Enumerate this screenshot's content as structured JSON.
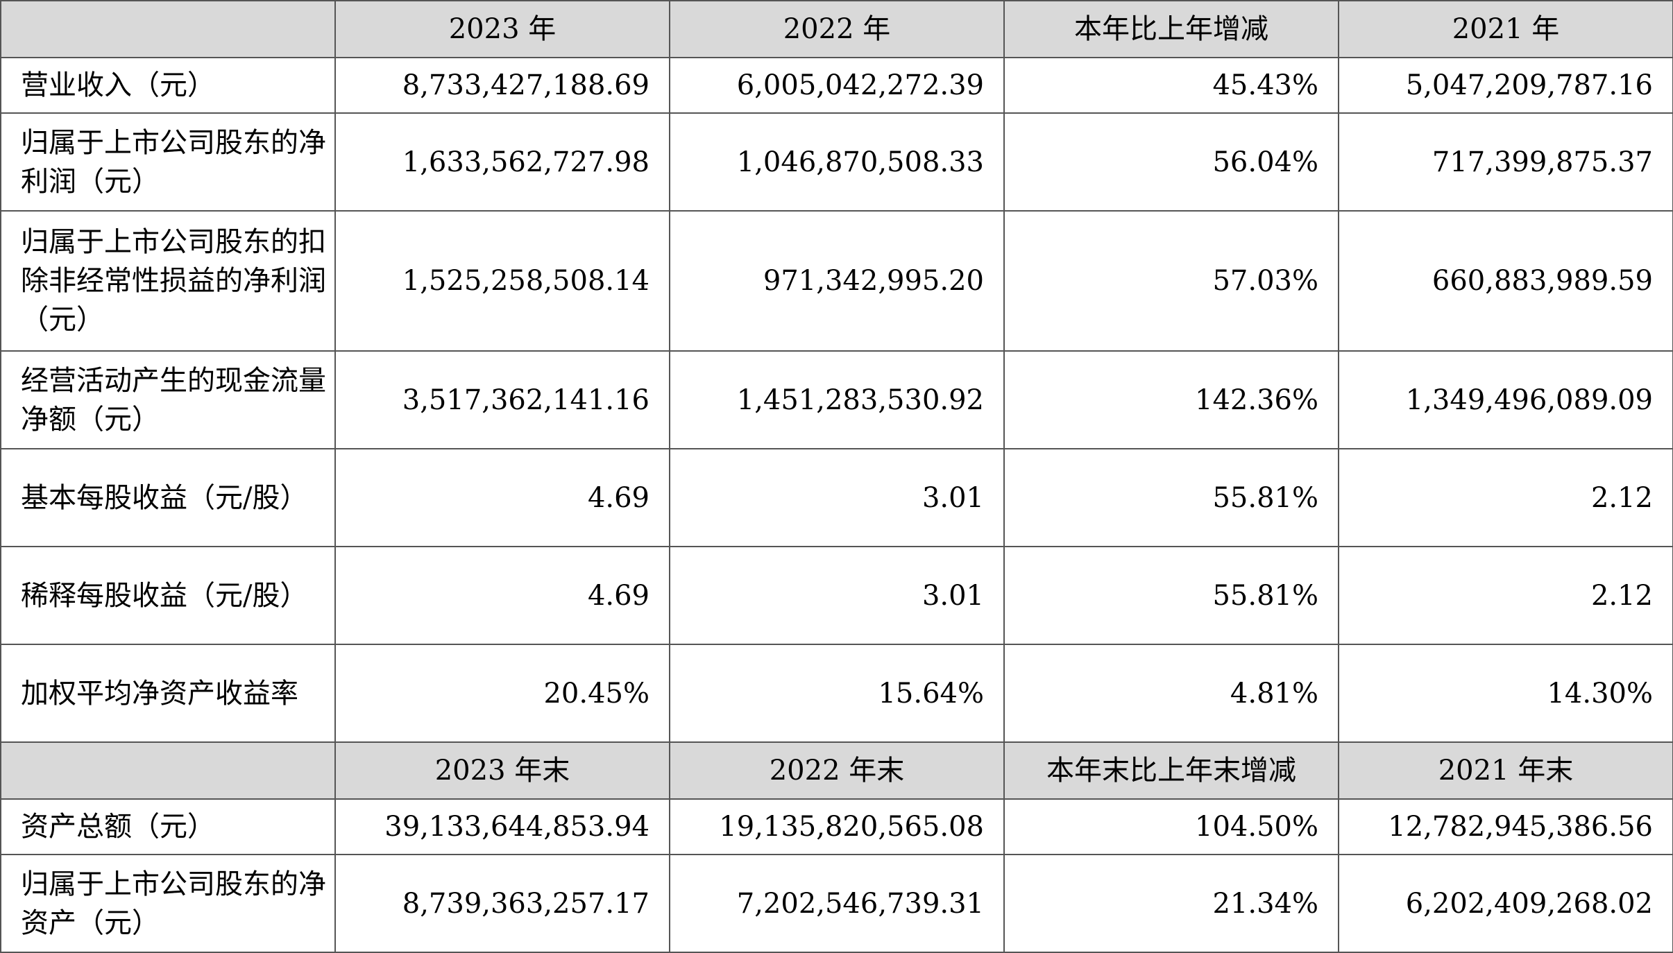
{
  "header1": [
    "",
    "2023 年",
    "2022 年",
    "本年比上年增减",
    "2021 年"
  ],
  "rows1": [
    {
      "label": "营业收入（元）",
      "v": [
        "8,733,427,188.69",
        "6,005,042,272.39",
        "45.43%",
        "5,047,209,787.16"
      ]
    },
    {
      "label": "归属于上市公司股东的净利润（元）",
      "v": [
        "1,633,562,727.98",
        "1,046,870,508.33",
        "56.04%",
        "717,399,875.37"
      ]
    },
    {
      "label": "归属于上市公司股东的扣除非经常性损益的净利润（元）",
      "v": [
        "1,525,258,508.14",
        "971,342,995.20",
        "57.03%",
        "660,883,989.59"
      ]
    },
    {
      "label": "经营活动产生的现金流量净额（元）",
      "v": [
        "3,517,362,141.16",
        "1,451,283,530.92",
        "142.36%",
        "1,349,496,089.09"
      ]
    },
    {
      "label": "基本每股收益（元/股）",
      "v": [
        "4.69",
        "3.01",
        "55.81%",
        "2.12"
      ]
    },
    {
      "label": "稀释每股收益（元/股）",
      "v": [
        "4.69",
        "3.01",
        "55.81%",
        "2.12"
      ]
    },
    {
      "label": "加权平均净资产收益率",
      "v": [
        "20.45%",
        "15.64%",
        "4.81%",
        "14.30%"
      ]
    }
  ],
  "header2": [
    "",
    "2023 年末",
    "2022 年末",
    "本年末比上年末增减",
    "2021 年末"
  ],
  "rows2": [
    {
      "label": "资产总额（元）",
      "v": [
        "39,133,644,853.94",
        "19,135,820,565.08",
        "104.50%",
        "12,782,945,386.56"
      ]
    },
    {
      "label": "归属于上市公司股东的净资产（元）",
      "v": [
        "8,739,363,257.17",
        "7,202,546,739.31",
        "21.34%",
        "6,202,409,268.02"
      ]
    }
  ]
}
